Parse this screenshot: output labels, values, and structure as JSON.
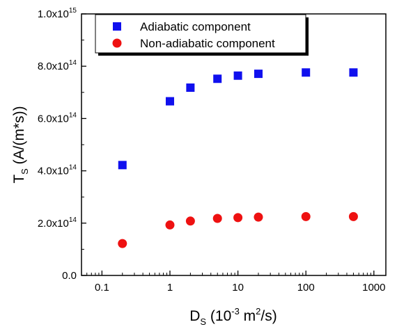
{
  "chart_data": {
    "type": "scatter",
    "xscale": "log",
    "xlim": [
      0.05,
      1500
    ],
    "ylim": [
      0,
      1000000000000000.0
    ],
    "x_tick_labels": [
      "0.1",
      "1",
      "10",
      "100",
      "1000"
    ],
    "y_tick_labels": [
      {
        "mant": "0.0",
        "exp": ""
      },
      {
        "mant": "2.0x10",
        "exp": "14"
      },
      {
        "mant": "4.0x10",
        "exp": "14"
      },
      {
        "mant": "6.0x10",
        "exp": "14"
      },
      {
        "mant": "8.0x10",
        "exp": "14"
      },
      {
        "mant": "1.0x10",
        "exp": "15"
      }
    ],
    "xlabel": {
      "main": "D",
      "sub": "S",
      "rest1": " (10",
      "sup1": "-3",
      "rest2": " m",
      "sup2": "2",
      "rest3": "/s)"
    },
    "ylabel": {
      "main": "T",
      "sub": "S",
      "rest": " (A/(m*s))"
    },
    "legend_position": "top-left",
    "series": [
      {
        "name": "Adiabatic component",
        "color": "#1010ee",
        "marker": "square",
        "x": [
          0.2,
          1,
          2,
          5,
          10,
          20,
          100,
          500
        ],
        "y": [
          422000000000000.0,
          666000000000000.0,
          718000000000000.0,
          752000000000000.0,
          764000000000000.0,
          771000000000000.0,
          776000000000000.0,
          776000000000000.0
        ]
      },
      {
        "name": "Non-adiabatic component",
        "color": "#ee1111",
        "marker": "circle",
        "x": [
          0.2,
          1,
          2,
          5,
          10,
          20,
          100,
          500
        ],
        "y": [
          122000000000000.0,
          193000000000000.0,
          208000000000000.0,
          218000000000000.0,
          221000000000000.0,
          223000000000000.0,
          225000000000000.0,
          225000000000000.0
        ]
      }
    ]
  }
}
